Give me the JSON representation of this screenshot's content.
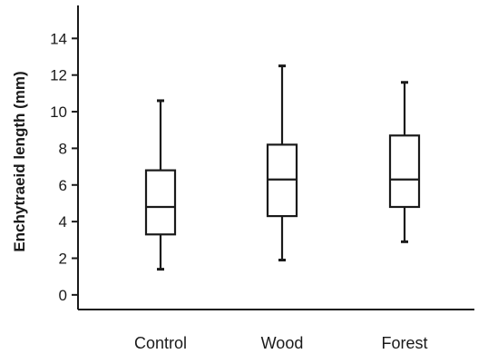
{
  "chart_data": {
    "type": "boxplot",
    "title": "",
    "xlabel": "",
    "ylabel": "Enchytraeid length (mm)",
    "ylim": [
      -0.8,
      15.8
    ],
    "yticks": [
      0,
      2,
      4,
      6,
      8,
      10,
      12,
      14
    ],
    "grid": false,
    "legend": "none",
    "categories": [
      "Control",
      "Wood",
      "Forest"
    ],
    "boxes": [
      {
        "category": "Control",
        "whisker_low": 1.4,
        "q1": 3.3,
        "median": 4.8,
        "q3": 6.8,
        "whisker_high": 10.6
      },
      {
        "category": "Wood",
        "whisker_low": 1.9,
        "q1": 4.3,
        "median": 6.3,
        "q3": 8.2,
        "whisker_high": 12.5
      },
      {
        "category": "Forest",
        "whisker_low": 2.9,
        "q1": 4.8,
        "median": 6.3,
        "q3": 8.7,
        "whisker_high": 11.6
      }
    ]
  },
  "colors": {
    "ink": "#1a1a1a",
    "box_fill": "#ffffff"
  }
}
